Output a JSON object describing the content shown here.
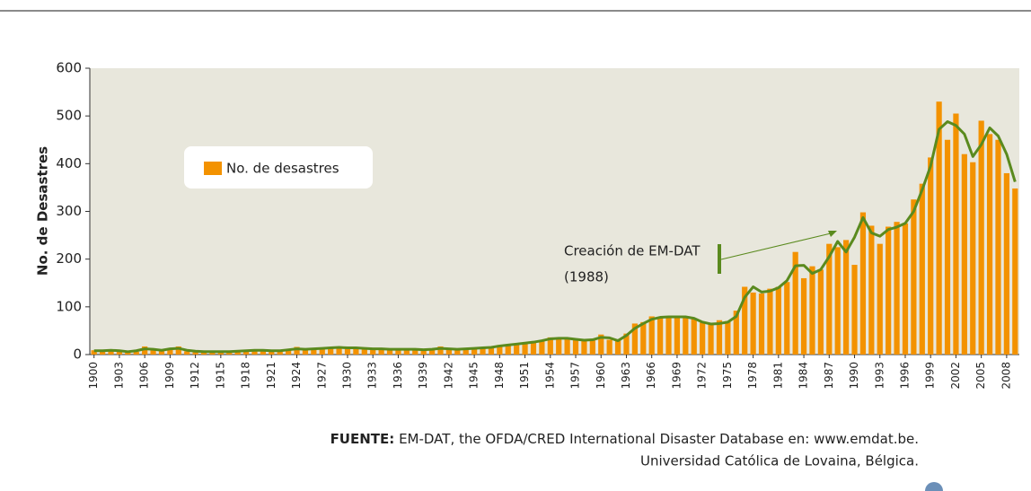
{
  "chart_data": {
    "type": "bar",
    "y_label": "No. de Desastres",
    "x": [
      1900,
      1901,
      1902,
      1903,
      1904,
      1905,
      1906,
      1907,
      1908,
      1909,
      1910,
      1911,
      1912,
      1913,
      1914,
      1915,
      1916,
      1917,
      1918,
      1919,
      1920,
      1921,
      1922,
      1923,
      1924,
      1925,
      1926,
      1927,
      1928,
      1929,
      1930,
      1931,
      1932,
      1933,
      1934,
      1935,
      1936,
      1937,
      1938,
      1939,
      1940,
      1941,
      1942,
      1943,
      1944,
      1945,
      1946,
      1947,
      1948,
      1949,
      1950,
      1951,
      1952,
      1953,
      1954,
      1955,
      1956,
      1957,
      1958,
      1959,
      1960,
      1961,
      1962,
      1963,
      1964,
      1965,
      1966,
      1967,
      1968,
      1969,
      1970,
      1971,
      1972,
      1973,
      1974,
      1975,
      1976,
      1977,
      1978,
      1979,
      1980,
      1981,
      1982,
      1983,
      1984,
      1985,
      1986,
      1987,
      1988,
      1989,
      1990,
      1991,
      1992,
      1993,
      1994,
      1995,
      1996,
      1997,
      1998,
      1999,
      2000,
      2001,
      2002,
      2003,
      2004,
      2005,
      2006,
      2007,
      2008,
      2009
    ],
    "series": [
      {
        "name": "No. de desastres",
        "type": "bar",
        "color": "#f39200",
        "values": [
          9,
          8,
          9,
          9,
          5,
          6,
          17,
          9,
          7,
          10,
          17,
          7,
          6,
          6,
          5,
          6,
          5,
          6,
          9,
          10,
          8,
          7,
          7,
          9,
          16,
          10,
          10,
          14,
          15,
          16,
          14,
          13,
          14,
          11,
          12,
          11,
          11,
          12,
          10,
          9,
          10,
          17,
          10,
          10,
          12,
          13,
          14,
          14,
          20,
          21,
          22,
          24,
          26,
          28,
          36,
          33,
          34,
          33,
          29,
          30,
          42,
          31,
          32,
          44,
          65,
          68,
          80,
          78,
          80,
          78,
          78,
          75,
          67,
          65,
          72,
          70,
          92,
          142,
          130,
          128,
          138,
          142,
          152,
          215,
          160,
          185,
          178,
          232,
          225,
          240,
          188,
          298,
          270,
          232,
          268,
          278,
          275,
          325,
          358,
          413,
          530,
          450,
          505,
          420,
          403,
          490,
          462,
          450,
          380,
          348
        ]
      },
      {
        "type": "line",
        "color": "#5a8a1e",
        "values": [
          8,
          8,
          9,
          8,
          6,
          8,
          12,
          11,
          9,
          12,
          13,
          9,
          7,
          6,
          6,
          6,
          6,
          7,
          8,
          9,
          9,
          8,
          8,
          10,
          12,
          11,
          12,
          13,
          14,
          15,
          14,
          14,
          13,
          12,
          12,
          11,
          11,
          11,
          11,
          10,
          11,
          13,
          12,
          11,
          12,
          13,
          14,
          15,
          18,
          20,
          22,
          24,
          26,
          29,
          33,
          34,
          34,
          32,
          30,
          31,
          36,
          35,
          29,
          40,
          55,
          65,
          74,
          78,
          79,
          79,
          79,
          76,
          68,
          64,
          65,
          68,
          80,
          120,
          142,
          131,
          133,
          140,
          155,
          186,
          187,
          170,
          178,
          205,
          237,
          215,
          246,
          287,
          255,
          248,
          262,
          267,
          275,
          300,
          345,
          395,
          472,
          488,
          480,
          462,
          415,
          440,
          475,
          458,
          420,
          362
        ]
      }
    ],
    "xlim": [
      1899.5,
      2009.5
    ],
    "xticks": [
      1900,
      1903,
      1906,
      1909,
      1912,
      1915,
      1918,
      1921,
      1924,
      1927,
      1930,
      1933,
      1936,
      1939,
      1942,
      1945,
      1948,
      1951,
      1954,
      1957,
      1960,
      1963,
      1966,
      1969,
      1972,
      1975,
      1978,
      1981,
      1984,
      1987,
      1990,
      1993,
      1996,
      1999,
      2002,
      2005,
      2008
    ],
    "ylim": [
      0,
      600
    ],
    "yticks": [
      0,
      100,
      200,
      300,
      400,
      500,
      600
    ],
    "legend": "upper left",
    "annotation": [
      "Creación de EM-DAT",
      "(1988)"
    ],
    "source_label": "FUENTE:",
    "source": [
      "EM-DAT, the OFDA/CRED International Disaster Database en: www.emdat.be.",
      "Universidad Católica de Lovaina, Bélgica."
    ]
  }
}
